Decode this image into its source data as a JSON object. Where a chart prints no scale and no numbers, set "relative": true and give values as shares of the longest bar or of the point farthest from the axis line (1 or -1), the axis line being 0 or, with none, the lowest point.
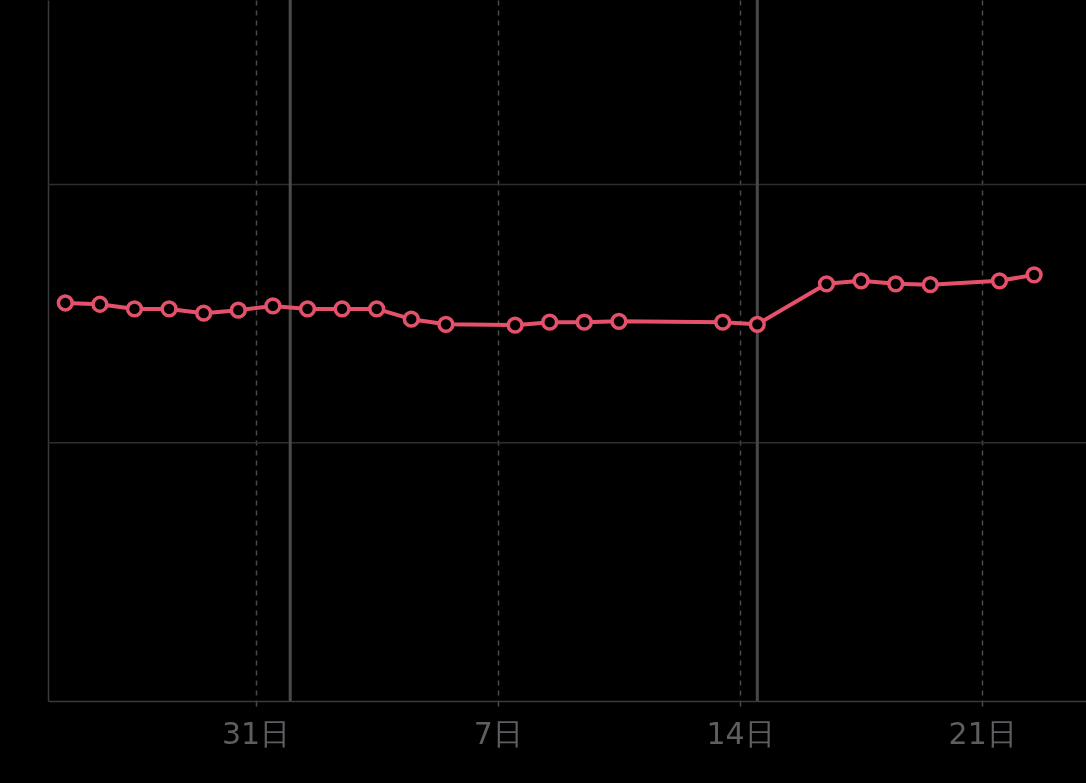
{
  "chart_data": {
    "type": "line",
    "relative": true,
    "x": [
      "--03-25T12:00",
      "--03-26T12:00",
      "--03-27T12:00",
      "--03-28T12:00",
      "--03-29T12:00",
      "--03-30T12:00",
      "--03-31T12:00",
      "--04-01T12:00",
      "--04-02T12:00",
      "--04-03T12:00",
      "--04-04T12:00",
      "--04-05T12:00",
      "--04-07T12:00",
      "--04-08T12:00",
      "--04-09T12:00",
      "--04-10T12:00",
      "--04-13T12:00",
      "--04-14T12:00",
      "--04-16T12:00",
      "--04-17T12:00",
      "--04-18T12:00",
      "--04-19T12:00",
      "--04-21T12:00",
      "--04-22T12:00"
    ],
    "values": [
      0.934,
      0.931,
      0.92,
      0.92,
      0.91,
      0.917,
      0.927,
      0.92,
      0.92,
      0.92,
      0.896,
      0.884,
      0.882,
      0.889,
      0.889,
      0.891,
      0.889,
      0.884,
      0.979,
      0.986,
      0.979,
      0.977,
      0.986,
      1
    ],
    "color": "#e5516b",
    "marker": "circle",
    "xlim": [
      "--03-25",
      "--04-24"
    ],
    "xticks": [
      {
        "value": "--03-31",
        "label": "31日"
      },
      {
        "value": "--04-07",
        "label": "7日"
      },
      {
        "value": "--04-14",
        "label": "14日"
      },
      {
        "value": "--04-21",
        "label": "21日"
      }
    ],
    "grid": "x",
    "tick_labels": "x",
    "ref_lines": [
      {
        "axis": "y",
        "value": 0.606,
        "color": "#2e2e30"
      },
      {
        "axis": "y",
        "value": 1.212,
        "color": "#2e2e30"
      },
      {
        "axis": "x",
        "value": "--04-01",
        "color": "#4a4a4c"
      },
      {
        "axis": "x",
        "value": "--04-14T12:00",
        "color": "#48484a"
      }
    ]
  }
}
